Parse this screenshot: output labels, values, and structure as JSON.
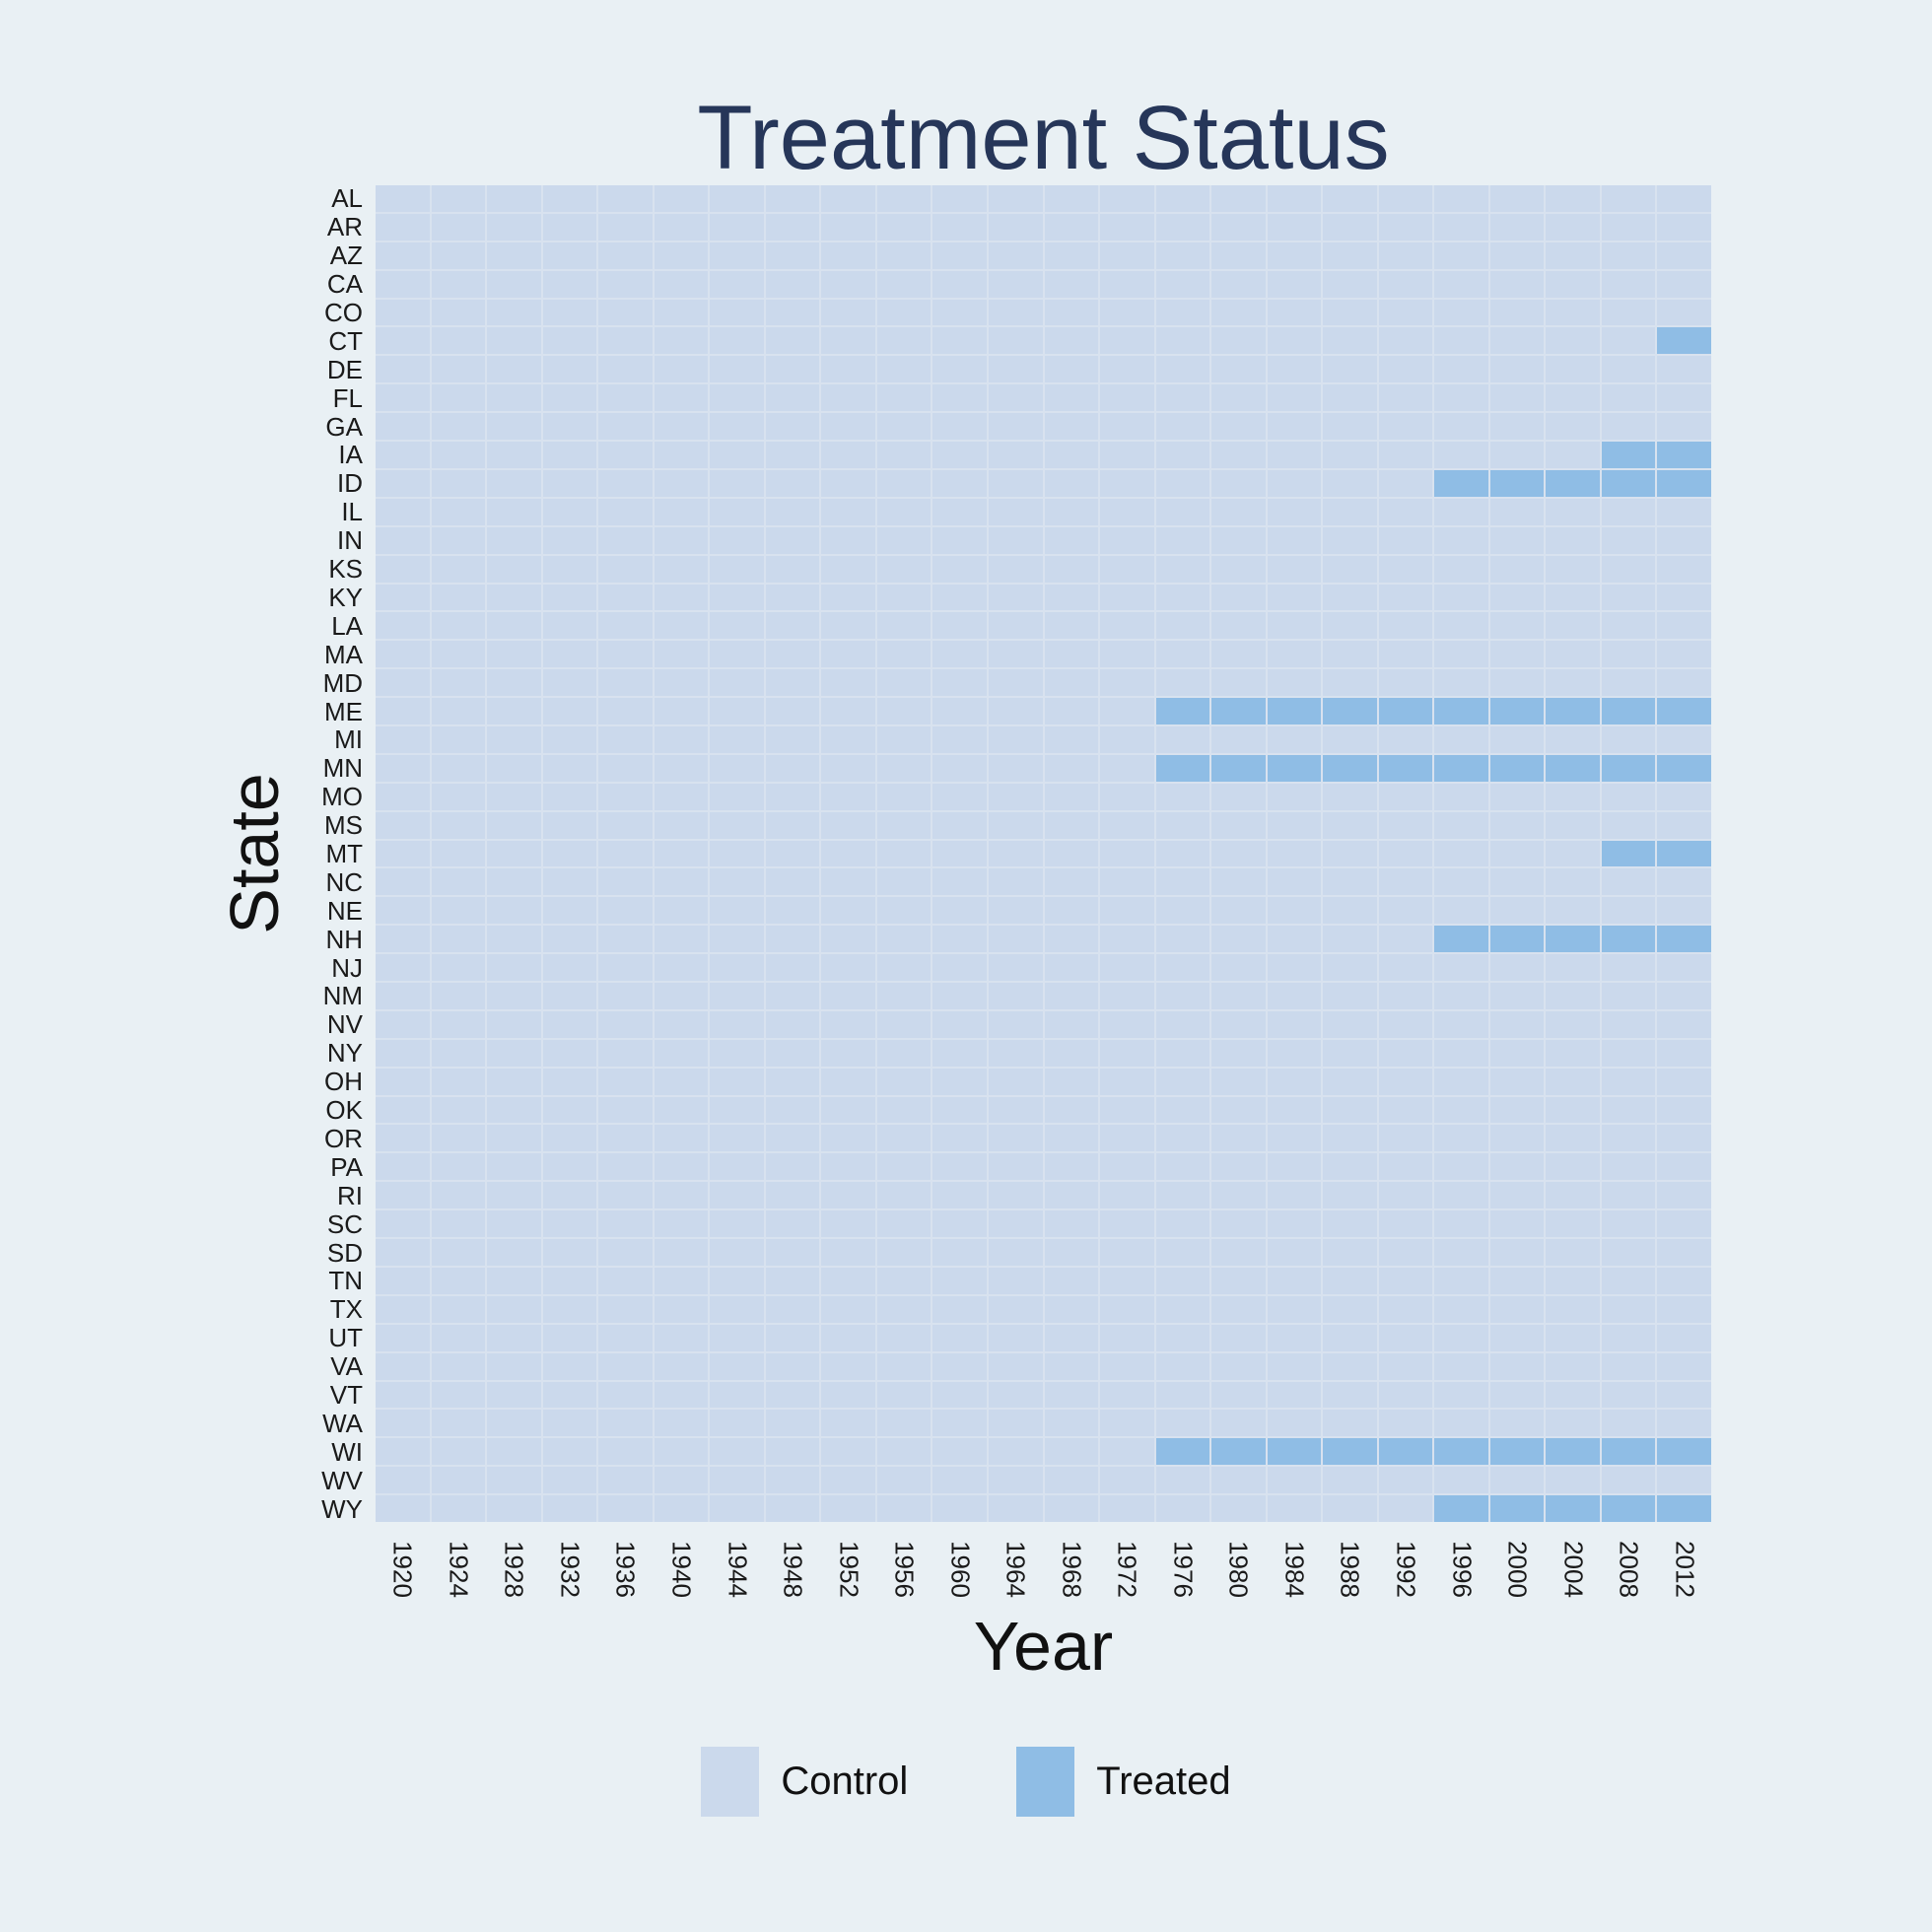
{
  "title": "Treatment Status",
  "x_axis": {
    "label": "Year"
  },
  "y_axis": {
    "label": "State"
  },
  "colors": {
    "background": "#e9f0f4",
    "control": "#cbd9ec",
    "treated": "#8fbde5",
    "gridline": "#d8e2ef",
    "title_text": "#263659",
    "axis_text": "#1a1a1a"
  },
  "legend": {
    "items": [
      {
        "label": "Control",
        "color": "#cbd9ec"
      },
      {
        "label": "Treated",
        "color": "#8fbde5"
      }
    ]
  },
  "chart_data": {
    "type": "heatmap",
    "title": "Treatment Status",
    "xlabel": "Year",
    "ylabel": "State",
    "x": [
      1920,
      1924,
      1928,
      1932,
      1936,
      1940,
      1944,
      1948,
      1952,
      1956,
      1960,
      1964,
      1968,
      1972,
      1976,
      1980,
      1984,
      1988,
      1992,
      1996,
      2000,
      2004,
      2008,
      2012
    ],
    "y": [
      "AL",
      "AR",
      "AZ",
      "CA",
      "CO",
      "CT",
      "DE",
      "FL",
      "GA",
      "IA",
      "ID",
      "IL",
      "IN",
      "KS",
      "KY",
      "LA",
      "MA",
      "MD",
      "ME",
      "MI",
      "MN",
      "MO",
      "MS",
      "MT",
      "NC",
      "NE",
      "NH",
      "NJ",
      "NM",
      "NV",
      "NY",
      "OH",
      "OK",
      "OR",
      "PA",
      "RI",
      "SC",
      "SD",
      "TN",
      "TX",
      "UT",
      "VA",
      "VT",
      "WA",
      "WI",
      "WV",
      "WY"
    ],
    "value_labels": {
      "0": "Control",
      "1": "Treated"
    },
    "treated_from": {
      "CT": 2012,
      "IA": 2008,
      "ID": 1996,
      "ME": 1976,
      "MN": 1976,
      "MT": 2008,
      "NH": 1996,
      "WI": 1976,
      "WY": 1996
    },
    "legend_position": "bottom",
    "grid": true
  }
}
